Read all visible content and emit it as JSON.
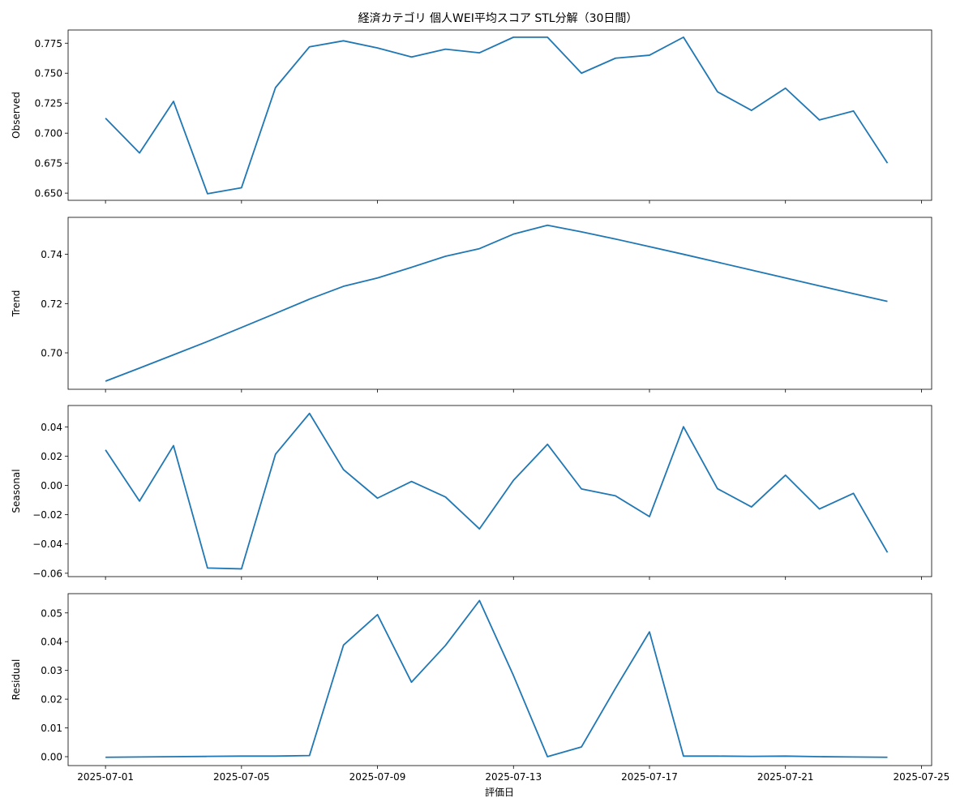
{
  "figure": {
    "title": "経済カテゴリ 個人WEI平均スコア STL分解（30日間）",
    "xlabel": "評価日"
  },
  "chart_data": [
    {
      "type": "line",
      "ylabel": "Observed",
      "color": "#1f77b4",
      "x": [
        "2025-07-01",
        "2025-07-02",
        "2025-07-03",
        "2025-07-04",
        "2025-07-05",
        "2025-07-06",
        "2025-07-07",
        "2025-07-08",
        "2025-07-09",
        "2025-07-10",
        "2025-07-11",
        "2025-07-12",
        "2025-07-13",
        "2025-07-14",
        "2025-07-15",
        "2025-07-16",
        "2025-07-17",
        "2025-07-18",
        "2025-07-19",
        "2025-07-20",
        "2025-07-21",
        "2025-07-22",
        "2025-07-23",
        "2025-07-24"
      ],
      "values": [
        0.7125,
        0.6835,
        0.7265,
        0.6495,
        0.6545,
        0.738,
        0.772,
        0.777,
        0.771,
        0.7635,
        0.77,
        0.767,
        0.78,
        0.78,
        0.75,
        0.7625,
        0.765,
        0.78,
        0.7345,
        0.719,
        0.7375,
        0.711,
        0.7185,
        0.675
      ],
      "ylim": [
        0.644,
        0.786
      ],
      "yticks": [
        0.65,
        0.675,
        0.7,
        0.725,
        0.75,
        0.775
      ],
      "ytick_labels": [
        "0.650",
        "0.675",
        "0.700",
        "0.725",
        "0.750",
        "0.775"
      ]
    },
    {
      "type": "line",
      "ylabel": "Trend",
      "color": "#1f77b4",
      "x": [
        "2025-07-01",
        "2025-07-02",
        "2025-07-03",
        "2025-07-04",
        "2025-07-05",
        "2025-07-06",
        "2025-07-07",
        "2025-07-08",
        "2025-07-09",
        "2025-07-10",
        "2025-07-11",
        "2025-07-12",
        "2025-07-13",
        "2025-07-14",
        "2025-07-15",
        "2025-07-16",
        "2025-07-17",
        "2025-07-18",
        "2025-07-19",
        "2025-07-20",
        "2025-07-21",
        "2025-07-22",
        "2025-07-23",
        "2025-07-24"
      ],
      "values": [
        0.6885,
        0.6938,
        0.6992,
        0.7046,
        0.7103,
        0.716,
        0.7218,
        0.727,
        0.7304,
        0.7347,
        0.7392,
        0.7423,
        0.7482,
        0.7518,
        0.7491,
        0.7462,
        0.7431,
        0.74,
        0.7368,
        0.7336,
        0.7304,
        0.7272,
        0.724,
        0.7209
      ],
      "ylim": [
        0.6852,
        0.755
      ],
      "yticks": [
        0.7,
        0.72,
        0.74
      ],
      "ytick_labels": [
        "0.70",
        "0.72",
        "0.74"
      ]
    },
    {
      "type": "line",
      "ylabel": "Seasonal",
      "color": "#1f77b4",
      "x": [
        "2025-07-01",
        "2025-07-02",
        "2025-07-03",
        "2025-07-04",
        "2025-07-05",
        "2025-07-06",
        "2025-07-07",
        "2025-07-08",
        "2025-07-09",
        "2025-07-10",
        "2025-07-11",
        "2025-07-12",
        "2025-07-13",
        "2025-07-14",
        "2025-07-15",
        "2025-07-16",
        "2025-07-17",
        "2025-07-18",
        "2025-07-19",
        "2025-07-20",
        "2025-07-21",
        "2025-07-22",
        "2025-07-23",
        "2025-07-24"
      ],
      "values": [
        0.0243,
        -0.0107,
        0.0272,
        -0.0564,
        -0.057,
        0.0213,
        0.0492,
        0.0108,
        -0.0087,
        0.0027,
        -0.0079,
        -0.0297,
        0.0035,
        0.0281,
        -0.0024,
        -0.0071,
        -0.0213,
        0.0401,
        -0.0022,
        -0.0147,
        0.007,
        -0.0161,
        -0.0054,
        -0.0458
      ],
      "ylim": [
        -0.0623,
        0.0546
      ],
      "yticks": [
        -0.06,
        -0.04,
        -0.02,
        0.0,
        0.02,
        0.04
      ],
      "ytick_labels": [
        "−0.06",
        "−0.04",
        "−0.02",
        "0.00",
        "0.02",
        "0.04"
      ]
    },
    {
      "type": "line",
      "ylabel": "Residual",
      "color": "#1f77b4",
      "x": [
        "2025-07-01",
        "2025-07-02",
        "2025-07-03",
        "2025-07-04",
        "2025-07-05",
        "2025-07-06",
        "2025-07-07",
        "2025-07-08",
        "2025-07-09",
        "2025-07-10",
        "2025-07-11",
        "2025-07-12",
        "2025-07-13",
        "2025-07-14",
        "2025-07-15",
        "2025-07-16",
        "2025-07-17",
        "2025-07-18",
        "2025-07-19",
        "2025-07-20",
        "2025-07-21",
        "2025-07-22",
        "2025-07-23",
        "2025-07-24"
      ],
      "values": [
        -0.0002,
        -0.0001,
        0.0,
        0.0001,
        0.0002,
        0.0002,
        0.0004,
        0.0388,
        0.0494,
        0.0259,
        0.0387,
        0.0543,
        0.0282,
        0.0,
        0.0034,
        0.0238,
        0.0434,
        0.0002,
        0.0002,
        0.0001,
        0.0002,
        0.0,
        -0.0001,
        -0.0002
      ],
      "ylim": [
        -0.0031,
        0.0567
      ],
      "yticks": [
        0.0,
        0.01,
        0.02,
        0.03,
        0.04,
        0.05
      ],
      "ytick_labels": [
        "0.00",
        "0.01",
        "0.02",
        "0.03",
        "0.04",
        "0.05"
      ]
    }
  ],
  "xaxis": {
    "tick_dates": [
      "2025-07-01",
      "2025-07-05",
      "2025-07-09",
      "2025-07-13",
      "2025-07-17",
      "2025-07-21",
      "2025-07-25"
    ],
    "tick_labels": [
      "2025-07-01",
      "2025-07-05",
      "2025-07-09",
      "2025-07-13",
      "2025-07-17",
      "2025-07-21",
      "2025-07-25"
    ],
    "xlim": [
      "2025-06-29 21:36",
      "2025-07-25 07:12"
    ]
  }
}
